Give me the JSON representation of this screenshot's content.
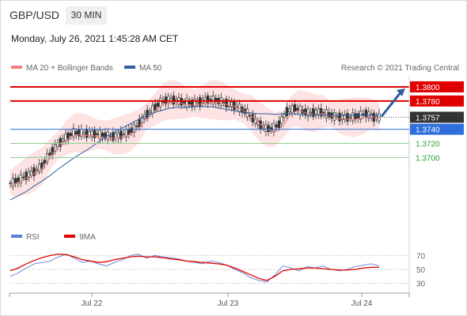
{
  "header": {
    "symbol": "GBP/USD",
    "timeframe": "30 MIN",
    "datetime": "Monday, July 26, 2021 1:45:28 AM CET"
  },
  "legend": {
    "ma20": "MA 20 + Bollinger Bands",
    "ma50": "MA 50",
    "copyright": "Research © 2021 Trading Central",
    "colors": {
      "ma20": "#f08080",
      "ma50": "#2f5d9e",
      "band_fill": "#fde3e3"
    }
  },
  "rsi_legend": {
    "rsi": "RSI",
    "ma": "9MA",
    "colors": {
      "rsi": "#5b7fd6",
      "ma": "#e00000"
    }
  },
  "price_labels": {
    "r2": "1.3800",
    "r1": "1.3780",
    "last": "1.3757",
    "pivot": "1.3740",
    "s1": "1.3720",
    "s2": "1.3700",
    "colors": {
      "resistance": "#e00000",
      "pivot": "#2f6fdb",
      "last": "#333333",
      "support": "#2e9e2e"
    }
  },
  "chart_data": [
    {
      "type": "line",
      "title": "",
      "x_ticks": [
        "Jul 22",
        "Jul 23",
        "Jul 24"
      ],
      "series": [
        {
          "name": "MA 20 + Bollinger Bands",
          "color": "#f08080"
        },
        {
          "name": "MA 50",
          "color": "#2f5d9e"
        }
      ],
      "price_series": [
        1.3664,
        1.3668,
        1.3674,
        1.368,
        1.3688,
        1.3705,
        1.3718,
        1.3728,
        1.3735,
        1.3735,
        1.3734,
        1.3733,
        1.3731,
        1.373,
        1.3732,
        1.3736,
        1.3744,
        1.3758,
        1.3768,
        1.3778,
        1.3782,
        1.3781,
        1.3778,
        1.3777,
        1.3779,
        1.3782,
        1.3781,
        1.3778,
        1.3775,
        1.377,
        1.3763,
        1.3752,
        1.3743,
        1.374,
        1.3747,
        1.3765,
        1.377,
        1.3765,
        1.3763,
        1.3765,
        1.3762,
        1.3758,
        1.3757,
        1.3757,
        1.3759,
        1.3762,
        1.3757
      ],
      "ma50_series": [
        1.364,
        1.3646,
        1.3652,
        1.366,
        1.3667,
        1.3675,
        1.3684,
        1.3692,
        1.37,
        1.3707,
        1.3714,
        1.3722,
        1.373,
        1.3736,
        1.3742,
        1.3748,
        1.3754,
        1.3759,
        1.3764,
        1.3767,
        1.377,
        1.3771,
        1.3771,
        1.3772,
        1.3772,
        1.3772,
        1.377,
        1.3768,
        1.3766,
        1.3764,
        1.3763,
        1.3762,
        1.3762,
        1.3761,
        1.3762,
        1.3762,
        1.3761,
        1.376,
        1.376,
        1.376,
        1.376,
        1.376,
        1.376,
        1.376,
        1.376,
        1.376,
        1.376
      ],
      "levels": {
        "resistance": [
          1.38,
          1.378
        ],
        "last": 1.3757,
        "pivot": 1.374,
        "support": [
          1.372,
          1.37
        ]
      },
      "projection": {
        "from": 1.3757,
        "to": 1.38
      },
      "ylim": [
        1.362,
        1.381
      ]
    },
    {
      "type": "line",
      "title": "",
      "y_ticks": [
        70,
        50,
        30
      ],
      "series": [
        {
          "name": "RSI",
          "color": "#5b7fd6",
          "values": [
            40,
            45,
            52,
            58,
            60,
            62,
            68,
            72,
            66,
            60,
            62,
            58,
            55,
            60,
            64,
            70,
            72,
            66,
            70,
            68,
            67,
            65,
            62,
            60,
            58,
            62,
            60,
            56,
            50,
            45,
            38,
            34,
            32,
            42,
            55,
            52,
            48,
            54,
            52,
            55,
            50,
            48,
            50,
            54,
            56,
            58,
            55
          ]
        },
        {
          "name": "9MA",
          "color": "#e00000",
          "values": [
            48,
            52,
            58,
            63,
            67,
            70,
            72,
            71,
            68,
            64,
            62,
            60,
            61,
            64,
            66,
            68,
            69,
            68,
            68,
            67,
            65,
            64,
            62,
            61,
            60,
            59,
            58,
            56,
            52,
            47,
            42,
            37,
            34,
            40,
            48,
            50,
            51,
            52,
            52,
            51,
            50,
            49,
            49,
            50,
            52,
            53,
            53
          ]
        }
      ],
      "ylim": [
        25,
        75
      ]
    }
  ]
}
